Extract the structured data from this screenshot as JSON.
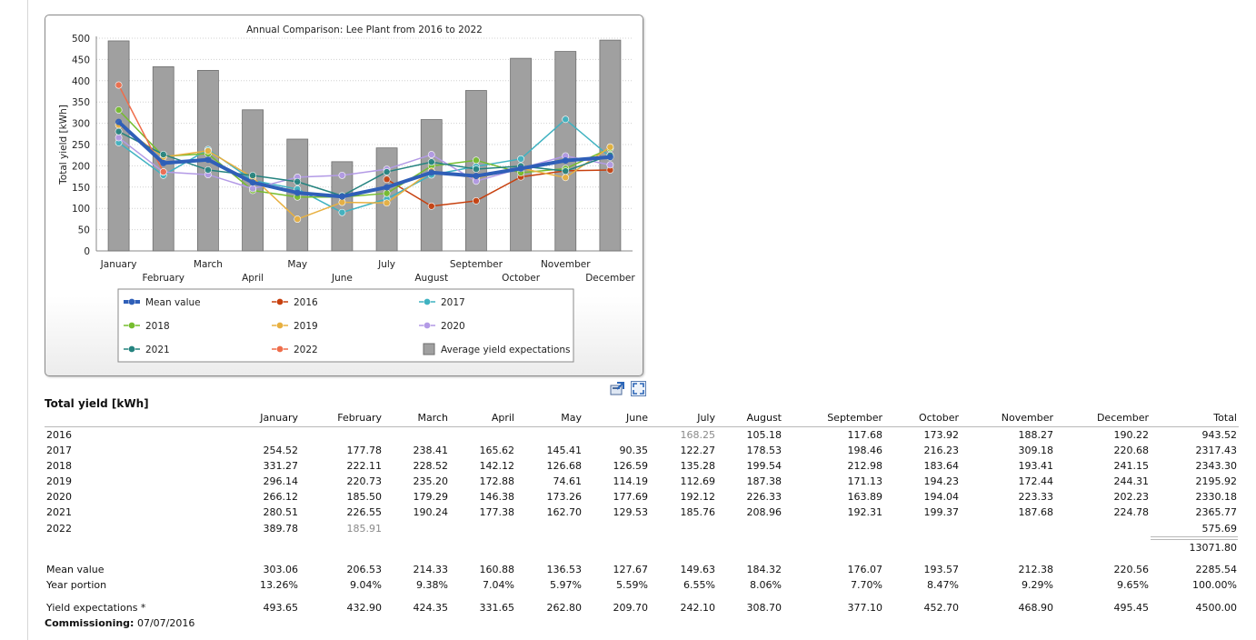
{
  "chart_data": {
    "type": "line",
    "title": "Annual Comparison: Lee Plant from 2016 to 2022",
    "xlabel": "",
    "ylabel": "Total yield [kWh]",
    "ylim": [
      0,
      500
    ],
    "yticks": [
      "0",
      "50",
      "100",
      "150",
      "200",
      "250",
      "300",
      "350",
      "400",
      "450",
      "500"
    ],
    "categories": [
      "January",
      "February",
      "March",
      "April",
      "May",
      "June",
      "July",
      "August",
      "September",
      "October",
      "November",
      "December"
    ],
    "bars": {
      "name": "Average yield expectations",
      "color": "#a0a0a0",
      "values": [
        493.65,
        432.9,
        424.35,
        331.65,
        262.8,
        209.7,
        242.1,
        308.7,
        377.1,
        452.7,
        468.9,
        495.45
      ]
    },
    "series": [
      {
        "name": "Mean value",
        "color": "#2f5fb8",
        "thick": true,
        "values": [
          303.06,
          206.53,
          214.33,
          160.88,
          136.53,
          127.67,
          149.63,
          184.32,
          176.07,
          193.57,
          212.38,
          220.56
        ]
      },
      {
        "name": "2016",
        "color": "#c7400e",
        "values": [
          null,
          null,
          null,
          null,
          null,
          null,
          168.25,
          105.18,
          117.68,
          173.92,
          188.27,
          190.22
        ]
      },
      {
        "name": "2017",
        "color": "#3fb2c1",
        "values": [
          254.52,
          177.78,
          238.41,
          165.62,
          145.41,
          90.35,
          122.27,
          178.53,
          198.46,
          216.23,
          309.18,
          220.68
        ]
      },
      {
        "name": "2018",
        "color": "#76bd2e",
        "values": [
          331.27,
          222.11,
          228.52,
          142.12,
          126.68,
          126.59,
          135.28,
          199.54,
          212.98,
          183.64,
          193.41,
          241.15
        ]
      },
      {
        "name": "2019",
        "color": "#e8b040",
        "values": [
          296.14,
          220.73,
          235.2,
          172.88,
          74.61,
          114.19,
          112.69,
          187.38,
          171.13,
          194.23,
          172.44,
          244.31
        ]
      },
      {
        "name": "2020",
        "color": "#b39ae6",
        "values": [
          266.12,
          185.5,
          179.29,
          146.38,
          173.26,
          177.69,
          192.12,
          226.33,
          163.89,
          194.04,
          223.33,
          202.23
        ]
      },
      {
        "name": "2021",
        "color": "#24837f",
        "values": [
          280.51,
          226.55,
          190.24,
          177.38,
          162.7,
          129.53,
          185.76,
          208.96,
          192.31,
          199.37,
          187.68,
          224.78
        ]
      },
      {
        "name": "2022",
        "color": "#ef6d4a",
        "values": [
          389.78,
          185.91,
          null,
          null,
          null,
          null,
          null,
          null,
          null,
          null,
          null,
          null
        ]
      }
    ],
    "legend": [
      [
        "Mean value",
        "2016",
        "2017"
      ],
      [
        "2018",
        "2019",
        "2020"
      ],
      [
        "2021",
        "2022",
        "Average yield expectations"
      ]
    ],
    "grid": true,
    "legend_placement": "bottom"
  },
  "table": {
    "title": "Total yield [kWh]",
    "columns": [
      "January",
      "February",
      "March",
      "April",
      "May",
      "June",
      "July",
      "August",
      "September",
      "October",
      "November",
      "December",
      "Total"
    ],
    "rows": [
      {
        "label": "2016",
        "cells": [
          "",
          "",
          "",
          "",
          "",
          "",
          "168.25",
          "105.18",
          "117.68",
          "173.92",
          "188.27",
          "190.22",
          "943.52"
        ],
        "grey": [
          6
        ]
      },
      {
        "label": "2017",
        "cells": [
          "254.52",
          "177.78",
          "238.41",
          "165.62",
          "145.41",
          "90.35",
          "122.27",
          "178.53",
          "198.46",
          "216.23",
          "309.18",
          "220.68",
          "2317.43"
        ],
        "grey": []
      },
      {
        "label": "2018",
        "cells": [
          "331.27",
          "222.11",
          "228.52",
          "142.12",
          "126.68",
          "126.59",
          "135.28",
          "199.54",
          "212.98",
          "183.64",
          "193.41",
          "241.15",
          "2343.30"
        ],
        "grey": []
      },
      {
        "label": "2019",
        "cells": [
          "296.14",
          "220.73",
          "235.20",
          "172.88",
          "74.61",
          "114.19",
          "112.69",
          "187.38",
          "171.13",
          "194.23",
          "172.44",
          "244.31",
          "2195.92"
        ],
        "grey": []
      },
      {
        "label": "2020",
        "cells": [
          "266.12",
          "185.50",
          "179.29",
          "146.38",
          "173.26",
          "177.69",
          "192.12",
          "226.33",
          "163.89",
          "194.04",
          "223.33",
          "202.23",
          "2330.18"
        ],
        "grey": []
      },
      {
        "label": "2021",
        "cells": [
          "280.51",
          "226.55",
          "190.24",
          "177.38",
          "162.70",
          "129.53",
          "185.76",
          "208.96",
          "192.31",
          "199.37",
          "187.68",
          "224.78",
          "2365.77"
        ],
        "grey": []
      },
      {
        "label": "2022",
        "cells": [
          "389.78",
          "185.91",
          "",
          "",
          "",
          "",
          "",
          "",
          "",
          "",
          "",
          "",
          "575.69"
        ],
        "grey": [
          1
        ]
      }
    ],
    "grand_total": "13071.80",
    "mean_row": {
      "label": "Mean value",
      "cells": [
        "303.06",
        "206.53",
        "214.33",
        "160.88",
        "136.53",
        "127.67",
        "149.63",
        "184.32",
        "176.07",
        "193.57",
        "212.38",
        "220.56",
        "2285.54"
      ]
    },
    "portion_row": {
      "label": "Year portion",
      "cells": [
        "13.26%",
        "9.04%",
        "9.38%",
        "7.04%",
        "5.97%",
        "5.59%",
        "6.55%",
        "8.06%",
        "7.70%",
        "8.47%",
        "9.29%",
        "9.65%",
        "100.00%"
      ]
    },
    "expect_row": {
      "label": "Yield expectations *",
      "cells": [
        "493.65",
        "432.90",
        "424.35",
        "331.65",
        "262.80",
        "209.70",
        "242.10",
        "308.70",
        "377.10",
        "452.70",
        "468.90",
        "495.45",
        "4500.00"
      ]
    }
  },
  "commissioning": {
    "label": "Commissioning:",
    "value": "07/07/2016"
  },
  "toolbar": {
    "export_icon": "export-chart-icon",
    "expand_icon": "fullscreen-icon"
  }
}
